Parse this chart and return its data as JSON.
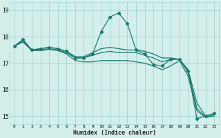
{
  "xlabel": "Humidex (Indice chaleur)",
  "ylabel": "",
  "background_color": "#d4eeec",
  "grid_color": "#a8d8d4",
  "line_color": "#1a7a6e",
  "xlim": [
    -0.5,
    23.5
  ],
  "ylim": [
    14.7,
    19.3
  ],
  "yticks": [
    15,
    16,
    17,
    18,
    19
  ],
  "xtick_labels": [
    "0",
    "1",
    "2",
    "3",
    "4",
    "5",
    "6",
    "7",
    "8",
    "9",
    "10",
    "11",
    "12",
    "13",
    "14",
    "15",
    "16",
    "17",
    "18",
    "19",
    "20",
    "21",
    "22",
    "23"
  ],
  "lines": [
    {
      "x": [
        0,
        1,
        2,
        3,
        4,
        5,
        6,
        7,
        8,
        9,
        10,
        11,
        12,
        13,
        14,
        15,
        16,
        17,
        18,
        19,
        20,
        21,
        22,
        23
      ],
      "y": [
        17.65,
        17.9,
        17.5,
        17.55,
        17.6,
        17.55,
        17.45,
        17.2,
        17.2,
        17.35,
        18.2,
        18.75,
        18.9,
        18.5,
        17.5,
        17.35,
        16.95,
        16.9,
        17.15,
        17.15,
        16.7,
        14.9,
        15.0,
        15.1
      ],
      "marker": "D",
      "markersize": 2.2,
      "linewidth": 0.9
    },
    {
      "x": [
        0,
        1,
        2,
        3,
        4,
        5,
        6,
        7,
        8,
        9,
        10,
        11,
        12,
        13,
        14,
        15,
        16,
        17,
        18,
        19,
        20,
        21,
        22,
        23
      ],
      "y": [
        17.65,
        17.85,
        17.5,
        17.55,
        17.6,
        17.55,
        17.45,
        17.25,
        17.25,
        17.4,
        17.55,
        17.6,
        17.55,
        17.5,
        17.5,
        17.45,
        17.35,
        17.2,
        17.2,
        17.15,
        16.75,
        15.5,
        15.0,
        15.1
      ],
      "marker": null,
      "markersize": 0,
      "linewidth": 0.9
    },
    {
      "x": [
        0,
        1,
        2,
        3,
        4,
        5,
        6,
        7,
        8,
        9,
        10,
        11,
        12,
        13,
        14,
        15,
        16,
        17,
        18,
        19,
        20,
        21,
        22,
        23
      ],
      "y": [
        17.65,
        17.85,
        17.5,
        17.5,
        17.55,
        17.5,
        17.4,
        17.2,
        17.2,
        17.3,
        17.4,
        17.45,
        17.4,
        17.4,
        17.4,
        17.3,
        17.2,
        17.05,
        17.15,
        17.15,
        16.65,
        15.3,
        14.95,
        15.05
      ],
      "marker": null,
      "markersize": 0,
      "linewidth": 0.9
    },
    {
      "x": [
        0,
        1,
        2,
        3,
        4,
        5,
        6,
        7,
        8,
        9,
        10,
        11,
        12,
        13,
        14,
        15,
        16,
        17,
        18,
        19,
        20,
        21,
        22,
        23
      ],
      "y": [
        17.65,
        17.8,
        17.48,
        17.48,
        17.52,
        17.48,
        17.35,
        17.1,
        17.05,
        17.05,
        17.1,
        17.1,
        17.1,
        17.1,
        17.05,
        17.0,
        16.9,
        16.75,
        16.9,
        17.1,
        16.5,
        15.2,
        14.95,
        15.0
      ],
      "marker": null,
      "markersize": 0,
      "linewidth": 0.9
    }
  ]
}
